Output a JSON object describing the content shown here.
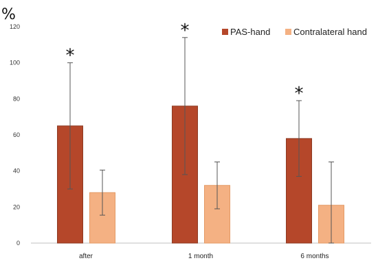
{
  "chart_data": {
    "type": "bar",
    "ylabel": "%",
    "ylim": [
      0,
      120
    ],
    "yticks": [
      0,
      20,
      40,
      60,
      80,
      100,
      120
    ],
    "grid": false,
    "legend_position": "top-right",
    "categories": [
      "after",
      "1 month",
      "6 months"
    ],
    "series": [
      {
        "name": "PAS-hand",
        "values": [
          65,
          76,
          58
        ],
        "error": [
          35,
          38,
          21
        ],
        "color": "#b5472a"
      },
      {
        "name": "Contralateral hand",
        "values": [
          28,
          32,
          21
        ],
        "error": [
          12.5,
          13,
          24
        ],
        "color": "#f4b183"
      }
    ],
    "annotations": [
      {
        "text": "*",
        "category": "after"
      },
      {
        "text": "*",
        "category": "1 month"
      },
      {
        "text": "*",
        "category": "6 months"
      }
    ]
  }
}
